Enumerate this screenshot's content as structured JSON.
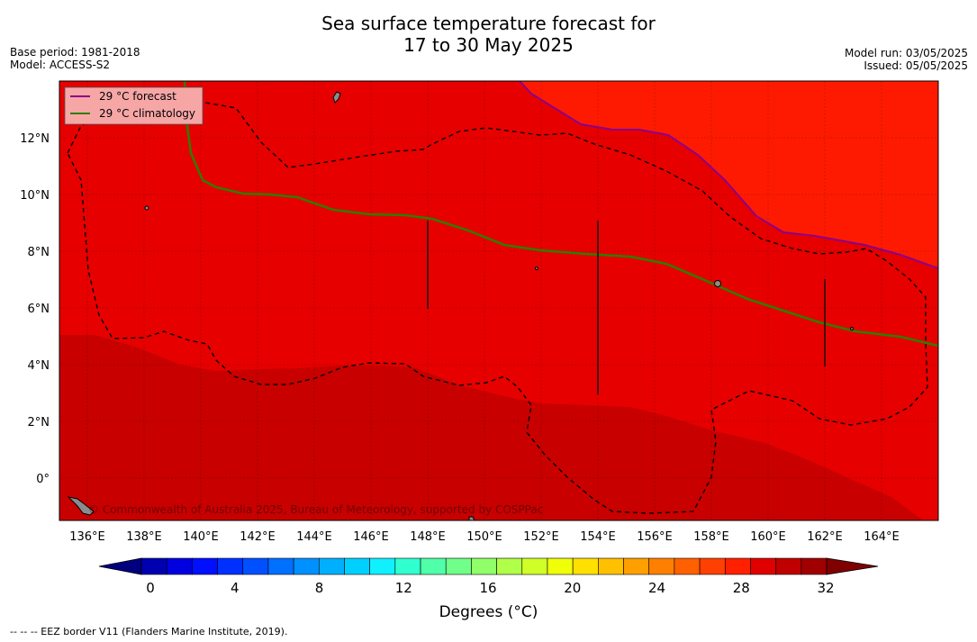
{
  "header": {
    "title_line1": "Sea surface temperature forecast for",
    "title_line2": "17 to 30 May 2025",
    "base_period": "Base period: 1981-2018",
    "model": "Model: ACCESS-S2",
    "model_run": "Model run: 03/05/2025",
    "issued": "Issued: 05/05/2025"
  },
  "map": {
    "lon_range": [
      135,
      166
    ],
    "lat_range": [
      -1.5,
      14
    ],
    "lon_ticks": [
      "136°E",
      "138°E",
      "140°E",
      "142°E",
      "144°E",
      "146°E",
      "148°E",
      "150°E",
      "152°E",
      "154°E",
      "156°E",
      "158°E",
      "160°E",
      "162°E",
      "164°E"
    ],
    "lat_ticks": [
      "12°N",
      "10°N",
      "8°N",
      "6°N",
      "4°N",
      "2°N",
      "0°"
    ],
    "colors": {
      "north_warm": "#fe1a00",
      "mid_band": "#e60000",
      "south_band": "#c80000",
      "forecast_line": "#8b008b",
      "climatology_line": "#2e7d00",
      "land": "#8c8c8c"
    },
    "legend": [
      {
        "label": "29 °C  forecast",
        "color": "#8b008b"
      },
      {
        "label": "29 °C  climatology",
        "color": "#2e7d00"
      }
    ],
    "copyright": "© Commonwealth of Australia 2025, Bureau of Meteorology, supported by COSPPac"
  },
  "colorbar": {
    "ticks": [
      "0",
      "4",
      "8",
      "12",
      "16",
      "20",
      "24",
      "28",
      "32"
    ],
    "title": "Degrees (",
    "title_unit": "°C)",
    "colors": [
      "#00007f",
      "#0000b0",
      "#0000e0",
      "#0010ff",
      "#0030ff",
      "#0050ff",
      "#0070ff",
      "#0090ff",
      "#00b0ff",
      "#00d0ff",
      "#10f0ff",
      "#30ffd0",
      "#50ffa8",
      "#70ff88",
      "#90ff68",
      "#b0ff48",
      "#d0ff28",
      "#f0ff08",
      "#ffe000",
      "#ffc000",
      "#ffa000",
      "#ff8000",
      "#ff6000",
      "#ff4000",
      "#ff2000",
      "#e00000",
      "#c00000",
      "#a00000",
      "#800000"
    ]
  },
  "footnote": "--  --  -- EEZ border V11 (Flanders Marine Institute, 2019)."
}
